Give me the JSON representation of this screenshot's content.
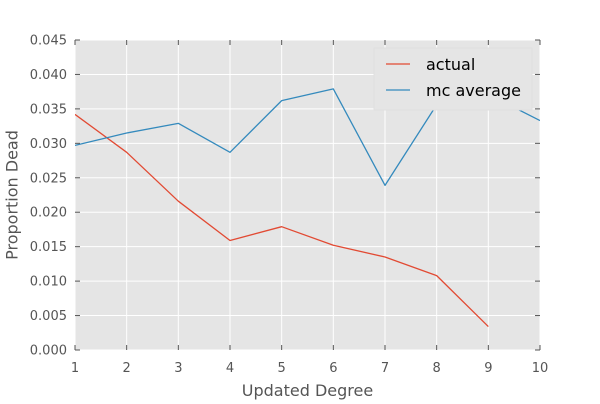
{
  "chart_data": {
    "type": "line",
    "title": "",
    "xlabel": "Updated Degree",
    "ylabel": "Proportion Dead",
    "xlim": [
      1,
      10
    ],
    "ylim": [
      0,
      0.045
    ],
    "xticks": [
      1,
      2,
      3,
      4,
      5,
      6,
      7,
      8,
      9,
      10
    ],
    "xtick_labels": [
      "1",
      "2",
      "3",
      "4",
      "5",
      "6",
      "7",
      "8",
      "9",
      "10"
    ],
    "yticks": [
      0,
      0.005,
      0.01,
      0.015,
      0.02,
      0.025,
      0.03,
      0.035,
      0.04,
      0.045
    ],
    "ytick_labels": [
      "0.000",
      "0.005",
      "0.010",
      "0.015",
      "0.020",
      "0.025",
      "0.030",
      "0.035",
      "0.040",
      "0.045"
    ],
    "grid": true,
    "legend_position": "top-right",
    "background_color": "#e5e5e5",
    "grid_color": "#ffffff",
    "series": [
      {
        "name": "actual",
        "color": "#e24a33",
        "x": [
          1,
          2,
          3,
          4,
          5,
          6,
          7,
          8,
          9
        ],
        "y": [
          0.0342,
          0.0287,
          0.0216,
          0.0159,
          0.0179,
          0.0152,
          0.0135,
          0.0108,
          0.0034
        ]
      },
      {
        "name": "mc average",
        "color": "#348abd",
        "x": [
          1,
          2,
          3,
          4,
          5,
          6,
          7,
          8,
          9,
          10
        ],
        "y": [
          0.0297,
          0.0315,
          0.0329,
          0.0287,
          0.0362,
          0.0379,
          0.0239,
          0.0356,
          0.0371,
          0.0333
        ]
      }
    ]
  }
}
